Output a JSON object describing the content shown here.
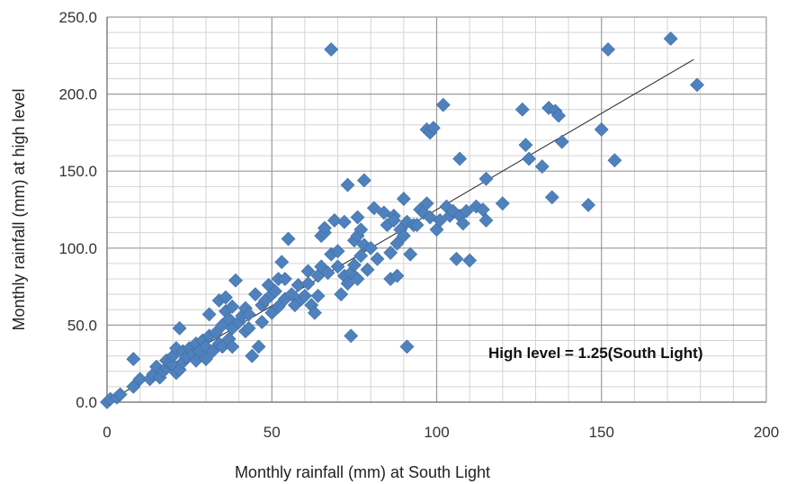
{
  "chart_data": {
    "type": "scatter",
    "title": "",
    "xlabel": "Monthly rainfall (mm) at South Light",
    "ylabel": "Monthly rainfall (mm) at high level",
    "xlim": [
      0,
      200
    ],
    "ylim": [
      0,
      250
    ],
    "x_ticks": [
      0,
      50,
      100,
      150,
      200
    ],
    "x_tick_labels": [
      "0",
      "50",
      "100",
      "150",
      "200"
    ],
    "y_ticks": [
      0,
      50,
      100,
      150,
      200,
      250
    ],
    "y_tick_labels": [
      "0.0",
      "50.0",
      "100.0",
      "150.0",
      "200.0",
      "250.0"
    ],
    "grid": true,
    "marker": "diamond",
    "marker_color": "#4F81BD",
    "trendline": {
      "slope": 1.25,
      "intercept": 0,
      "x": [
        0,
        178
      ],
      "color": "#333333"
    },
    "annotation": "High level = 1.25(South Light)",
    "points": [
      [
        0,
        0
      ],
      [
        1,
        2
      ],
      [
        3,
        3
      ],
      [
        4,
        5
      ],
      [
        8,
        10
      ],
      [
        8,
        28
      ],
      [
        10,
        15
      ],
      [
        13,
        15
      ],
      [
        14,
        18
      ],
      [
        15,
        23
      ],
      [
        16,
        16
      ],
      [
        17,
        20
      ],
      [
        18,
        22
      ],
      [
        18,
        27
      ],
      [
        19,
        25
      ],
      [
        20,
        24
      ],
      [
        20,
        30
      ],
      [
        21,
        19
      ],
      [
        21,
        35
      ],
      [
        22,
        21
      ],
      [
        22,
        48
      ],
      [
        23,
        26
      ],
      [
        23,
        33
      ],
      [
        24,
        29
      ],
      [
        25,
        35
      ],
      [
        26,
        31
      ],
      [
        27,
        27
      ],
      [
        27,
        38
      ],
      [
        28,
        33
      ],
      [
        29,
        40
      ],
      [
        30,
        28
      ],
      [
        30,
        36
      ],
      [
        31,
        43
      ],
      [
        31,
        57
      ],
      [
        32,
        33
      ],
      [
        33,
        45
      ],
      [
        34,
        38
      ],
      [
        34,
        66
      ],
      [
        35,
        50
      ],
      [
        35,
        36
      ],
      [
        36,
        59
      ],
      [
        36,
        68
      ],
      [
        37,
        41
      ],
      [
        37,
        54
      ],
      [
        38,
        36
      ],
      [
        38,
        62
      ],
      [
        38,
        48
      ],
      [
        39,
        79
      ],
      [
        40,
        52
      ],
      [
        41,
        56
      ],
      [
        42,
        61
      ],
      [
        42,
        46
      ],
      [
        43,
        57
      ],
      [
        43,
        48
      ],
      [
        44,
        30
      ],
      [
        45,
        70
      ],
      [
        46,
        36
      ],
      [
        47,
        52
      ],
      [
        47,
        63
      ],
      [
        48,
        66
      ],
      [
        49,
        76
      ],
      [
        50,
        70
      ],
      [
        50,
        58
      ],
      [
        51,
        72
      ],
      [
        52,
        80
      ],
      [
        52,
        62
      ],
      [
        53,
        91
      ],
      [
        54,
        67
      ],
      [
        54,
        80
      ],
      [
        55,
        106
      ],
      [
        56,
        70
      ],
      [
        57,
        63
      ],
      [
        58,
        76
      ],
      [
        59,
        67
      ],
      [
        60,
        69
      ],
      [
        61,
        77
      ],
      [
        61,
        85
      ],
      [
        62,
        63
      ],
      [
        63,
        58
      ],
      [
        64,
        82
      ],
      [
        64,
        69
      ],
      [
        65,
        88
      ],
      [
        65,
        108
      ],
      [
        66,
        110
      ],
      [
        66,
        113
      ],
      [
        67,
        84
      ],
      [
        68,
        96
      ],
      [
        68,
        229
      ],
      [
        69,
        118
      ],
      [
        70,
        88
      ],
      [
        70,
        98
      ],
      [
        71,
        70
      ],
      [
        72,
        117
      ],
      [
        72,
        82
      ],
      [
        73,
        77
      ],
      [
        73,
        141
      ],
      [
        74,
        43
      ],
      [
        74,
        84
      ],
      [
        75,
        105
      ],
      [
        75,
        89
      ],
      [
        76,
        108
      ],
      [
        76,
        120
      ],
      [
        76,
        80
      ],
      [
        77,
        95
      ],
      [
        77,
        112
      ],
      [
        78,
        144
      ],
      [
        78,
        102
      ],
      [
        79,
        86
      ],
      [
        80,
        100
      ],
      [
        81,
        126
      ],
      [
        82,
        93
      ],
      [
        84,
        123
      ],
      [
        85,
        115
      ],
      [
        86,
        80
      ],
      [
        86,
        97
      ],
      [
        87,
        121
      ],
      [
        87,
        118
      ],
      [
        88,
        103
      ],
      [
        88,
        82
      ],
      [
        89,
        112
      ],
      [
        90,
        108
      ],
      [
        90,
        132
      ],
      [
        91,
        117
      ],
      [
        91,
        36
      ],
      [
        92,
        96
      ],
      [
        93,
        115
      ],
      [
        94,
        115
      ],
      [
        95,
        125
      ],
      [
        96,
        123
      ],
      [
        97,
        129
      ],
      [
        97,
        177
      ],
      [
        98,
        120
      ],
      [
        98,
        175
      ],
      [
        99,
        178
      ],
      [
        100,
        112
      ],
      [
        101,
        118
      ],
      [
        102,
        193
      ],
      [
        103,
        127
      ],
      [
        104,
        121
      ],
      [
        105,
        124
      ],
      [
        106,
        93
      ],
      [
        107,
        121
      ],
      [
        107,
        158
      ],
      [
        108,
        116
      ],
      [
        109,
        124
      ],
      [
        110,
        92
      ],
      [
        112,
        127
      ],
      [
        114,
        125
      ],
      [
        115,
        118
      ],
      [
        115,
        145
      ],
      [
        120,
        129
      ],
      [
        126,
        190
      ],
      [
        127,
        167
      ],
      [
        128,
        158
      ],
      [
        132,
        153
      ],
      [
        134,
        191
      ],
      [
        135,
        133
      ],
      [
        136,
        189
      ],
      [
        137,
        186
      ],
      [
        138,
        169
      ],
      [
        146,
        128
      ],
      [
        150,
        177
      ],
      [
        152,
        229
      ],
      [
        154,
        157
      ],
      [
        171,
        236
      ],
      [
        179,
        206
      ]
    ]
  }
}
